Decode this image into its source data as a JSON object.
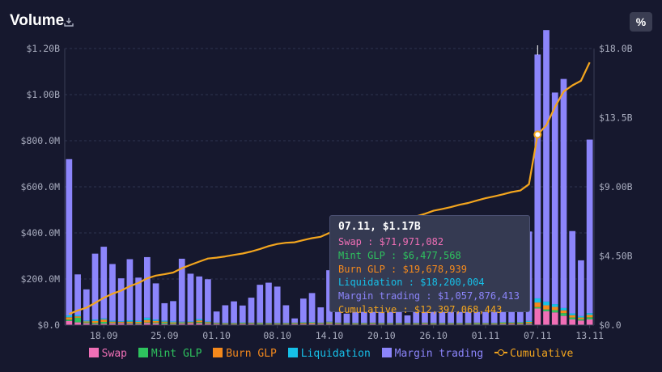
{
  "header": {
    "title": "Volume",
    "download_icon": "download-icon",
    "percent_label": "%"
  },
  "chart_data": {
    "type": "bar",
    "stacked": true,
    "categories": [
      "14.09",
      "15.09",
      "16.09",
      "17.09",
      "18.09",
      "19.09",
      "20.09",
      "21.09",
      "22.09",
      "23.09",
      "24.09",
      "25.09",
      "26.09",
      "27.09",
      "28.09",
      "29.09",
      "30.09",
      "01.10",
      "02.10",
      "03.10",
      "04.10",
      "05.10",
      "06.10",
      "07.10",
      "08.10",
      "09.10",
      "10.10",
      "11.10",
      "12.10",
      "13.10",
      "14.10",
      "15.10",
      "16.10",
      "17.10",
      "18.10",
      "19.10",
      "20.10",
      "21.10",
      "22.10",
      "23.10",
      "24.10",
      "25.10",
      "26.10",
      "27.10",
      "28.10",
      "29.10",
      "30.10",
      "31.10",
      "01.11",
      "02.11",
      "03.11",
      "04.11",
      "05.11",
      "06.11",
      "07.11",
      "08.11",
      "09.11",
      "10.11",
      "11.11",
      "12.11",
      "13.11"
    ],
    "x_tick_labels": [
      "18.09",
      "25.09",
      "01.10",
      "08.10",
      "14.10",
      "20.10",
      "26.10",
      "01.11",
      "07.11",
      "13.11"
    ],
    "y_left": {
      "label": "",
      "ticks": [
        "$0.0",
        "$200.0M",
        "$400.0M",
        "$600.0M",
        "$800.0M",
        "$1.00B",
        "$1.20B"
      ],
      "range_musd": [
        0,
        1200
      ]
    },
    "y_right": {
      "label": "",
      "ticks": [
        "$0.0",
        "$4.50B",
        "$9.00B",
        "$13.5B",
        "$18.0B"
      ],
      "range_busd": [
        0,
        18
      ]
    },
    "grid": "horizontal dotted",
    "legend_position": "bottom",
    "series": [
      {
        "name": "Swap",
        "color": "#f06fb6",
        "values_musd": [
          18,
          12,
          8,
          5,
          6,
          7,
          8,
          6,
          5,
          9,
          7,
          5,
          4,
          6,
          7,
          8,
          6,
          4,
          3,
          3,
          4,
          4,
          3,
          3,
          3,
          3,
          4,
          4,
          5,
          4,
          5,
          4,
          3,
          3,
          3,
          4,
          3,
          3,
          3,
          3,
          3,
          4,
          3,
          3,
          3,
          3,
          3,
          3,
          3,
          3,
          4,
          4,
          4,
          5,
          72,
          60,
          55,
          40,
          25,
          20,
          25
        ]
      },
      {
        "name": "Mint GLP",
        "color": "#2ec35e",
        "values_musd": [
          6,
          20,
          4,
          5,
          8,
          3,
          2,
          3,
          4,
          3,
          4,
          6,
          3,
          3,
          2,
          5,
          3,
          2,
          2,
          2,
          2,
          2,
          3,
          2,
          2,
          2,
          2,
          2,
          2,
          2,
          3,
          2,
          2,
          2,
          2,
          2,
          2,
          2,
          2,
          2,
          2,
          2,
          2,
          2,
          2,
          2,
          2,
          3,
          2,
          2,
          3,
          2,
          3,
          4,
          6,
          8,
          10,
          12,
          8,
          6,
          9
        ]
      },
      {
        "name": "Burn GLP",
        "color": "#f5891c",
        "values_musd": [
          10,
          6,
          4,
          8,
          10,
          5,
          4,
          6,
          5,
          10,
          7,
          4,
          5,
          3,
          4,
          7,
          4,
          3,
          3,
          3,
          3,
          3,
          3,
          3,
          3,
          3,
          3,
          4,
          4,
          3,
          4,
          3,
          3,
          3,
          3,
          3,
          3,
          3,
          3,
          3,
          3,
          3,
          3,
          3,
          3,
          3,
          3,
          3,
          3,
          3,
          4,
          4,
          4,
          5,
          20,
          18,
          14,
          12,
          10,
          7,
          10
        ]
      },
      {
        "name": "Liquidation",
        "color": "#16c0e8",
        "values_musd": [
          8,
          6,
          4,
          6,
          5,
          4,
          3,
          6,
          4,
          10,
          6,
          4,
          4,
          3,
          3,
          6,
          3,
          2,
          2,
          2,
          3,
          2,
          2,
          2,
          2,
          2,
          2,
          3,
          3,
          2,
          3,
          2,
          2,
          2,
          2,
          2,
          2,
          2,
          2,
          2,
          2,
          2,
          2,
          2,
          2,
          2,
          2,
          2,
          2,
          2,
          3,
          3,
          3,
          4,
          18,
          16,
          12,
          10,
          8,
          6,
          8
        ]
      },
      {
        "name": "Margin trading",
        "color": "#8c85fb",
        "values_musd": [
          678,
          176,
          135,
          286,
          311,
          246,
          186,
          265,
          188,
          263,
          157,
          76,
          88,
          273,
          207,
          185,
          183,
          48,
          76,
          93,
          73,
          108,
          164,
          174,
          157,
          76,
          18,
          102,
          125,
          66,
          223,
          94,
          40,
          105,
          129,
          114,
          82,
          105,
          96,
          32,
          141,
          114,
          115,
          91,
          97,
          139,
          106,
          140,
          129,
          94,
          108,
          121,
          74,
          388,
          1058,
          1178,
          918,
          994,
          357,
          242,
          753
        ]
      },
      {
        "name": "Cumulative",
        "color": "#f3a51e",
        "type": "line",
        "axis": "right",
        "values_busd": [
          0.72,
          0.95,
          1.13,
          1.44,
          1.78,
          2.04,
          2.24,
          2.53,
          2.74,
          3.04,
          3.22,
          3.31,
          3.42,
          3.7,
          3.92,
          4.13,
          4.33,
          4.39,
          4.47,
          4.57,
          4.66,
          4.79,
          4.95,
          5.14,
          5.28,
          5.36,
          5.39,
          5.53,
          5.66,
          5.75,
          6.0,
          6.06,
          6.1,
          6.24,
          6.38,
          6.52,
          6.62,
          6.76,
          6.88,
          6.93,
          7.08,
          7.24,
          7.44,
          7.56,
          7.68,
          7.83,
          7.95,
          8.11,
          8.26,
          8.38,
          8.51,
          8.66,
          8.76,
          9.17,
          12.4,
          13.0,
          14.2,
          15.2,
          15.6,
          15.9,
          17.1
        ]
      }
    ]
  },
  "tooltip": {
    "title": "07.11, $1.17B",
    "rows": [
      {
        "text": "Swap : $71,971,082",
        "color": "#f06fb6"
      },
      {
        "text": "Mint GLP : $6,477,568",
        "color": "#2ec35e"
      },
      {
        "text": "Burn GLP : $19,678,939",
        "color": "#f5891c"
      },
      {
        "text": "Liquidation : $18,200,004",
        "color": "#16c0e8"
      },
      {
        "text": "Margin trading : $1,057,876,413",
        "color": "#8c85fb"
      },
      {
        "text": "Cumulative : $12,397,068,443",
        "color": "#f3a51e"
      }
    ]
  },
  "legend": [
    {
      "label": "Swap",
      "color": "#f06fb6",
      "kind": "box"
    },
    {
      "label": "Mint GLP",
      "color": "#2ec35e",
      "kind": "box"
    },
    {
      "label": "Burn GLP",
      "color": "#f5891c",
      "kind": "box"
    },
    {
      "label": "Liquidation",
      "color": "#16c0e8",
      "kind": "box"
    },
    {
      "label": "Margin trading",
      "color": "#8c85fb",
      "kind": "box"
    },
    {
      "label": "Cumulative",
      "color": "#f3a51e",
      "kind": "line"
    }
  ]
}
